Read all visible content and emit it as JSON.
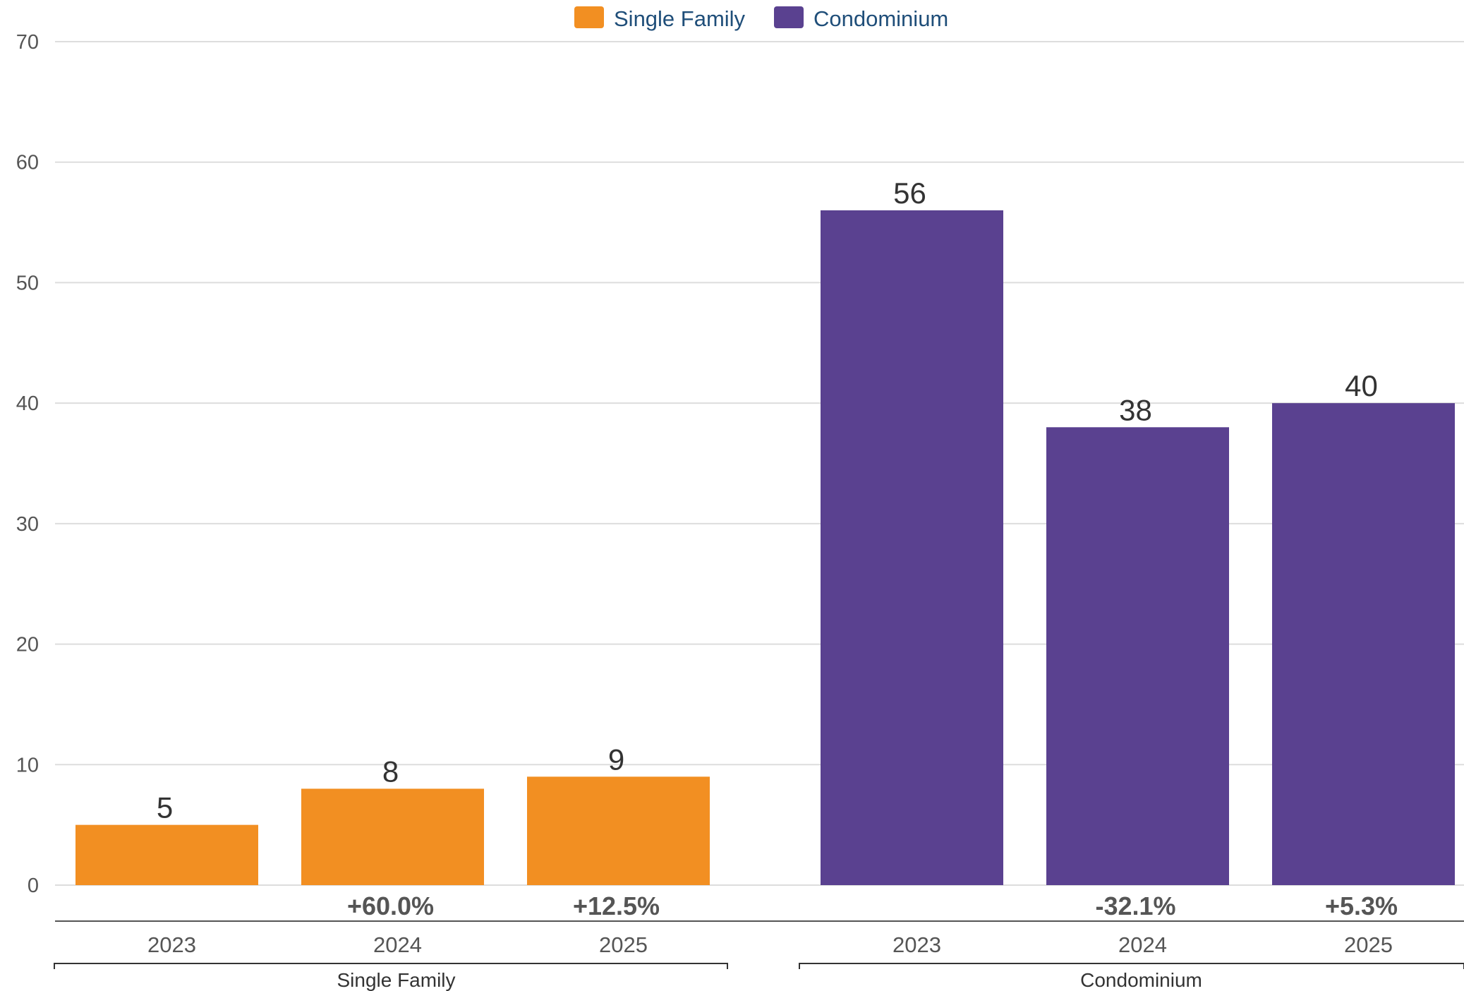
{
  "colors": {
    "single_family": "#f28f22",
    "condominium": "#5a4190",
    "grid": "#dddddd",
    "axis": "#555555"
  },
  "legend": [
    {
      "name": "Single Family",
      "color": "#f28f22"
    },
    {
      "name": "Condominium",
      "color": "#5a4190"
    }
  ],
  "chart_data": {
    "type": "bar",
    "ylim": [
      0,
      70
    ],
    "yticks": [
      0,
      10,
      20,
      30,
      40,
      50,
      60,
      70
    ],
    "grid": true,
    "legend_position": "top-center",
    "groups": [
      {
        "name": "Single Family",
        "color": "#f28f22",
        "categories": [
          "2023",
          "2024",
          "2025"
        ],
        "values": [
          5,
          8,
          9
        ],
        "value_labels": [
          "5",
          "8",
          "9"
        ],
        "changes": [
          "",
          "+60.0%",
          "+12.5%"
        ]
      },
      {
        "name": "Condominium",
        "color": "#5a4190",
        "categories": [
          "2023",
          "2024",
          "2025"
        ],
        "values": [
          56,
          38,
          40
        ],
        "value_labels": [
          "56",
          "38",
          "40"
        ],
        "changes": [
          "",
          "-32.1%",
          "+5.3%"
        ]
      }
    ]
  }
}
